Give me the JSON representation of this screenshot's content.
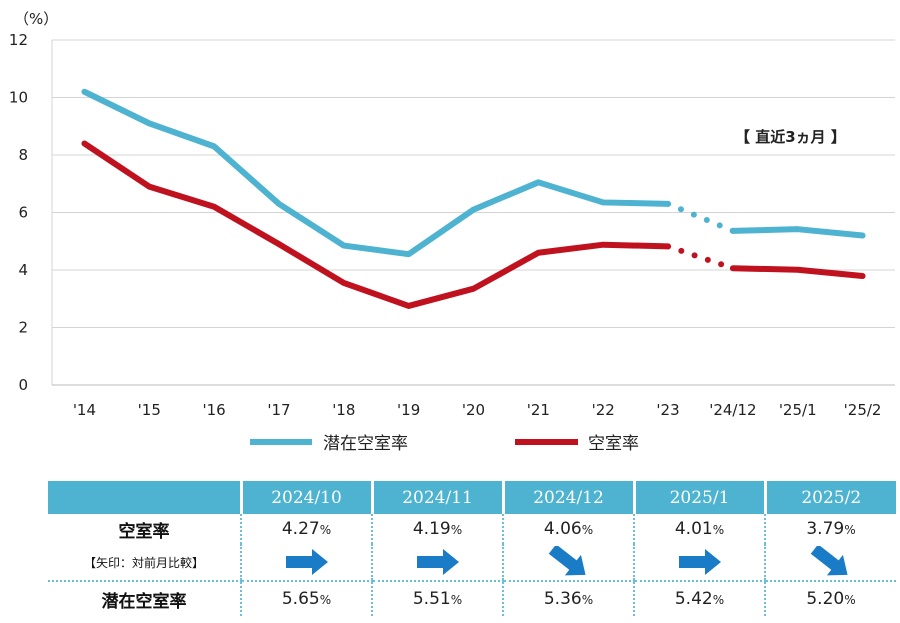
{
  "chart_data": {
    "type": "line",
    "unit_label": "（%）",
    "categories": [
      "'14",
      "'15",
      "'16",
      "'17",
      "'18",
      "'19",
      "'20",
      "'21",
      "'22",
      "'23",
      "'24/12",
      "'25/1",
      "'25/2"
    ],
    "y_ticks": [
      0,
      2,
      4,
      6,
      8,
      10,
      12
    ],
    "ylim": [
      0,
      12
    ],
    "grid": true,
    "annotation": "【 直近3ヵ月 】",
    "series": [
      {
        "name": "潜在空室率",
        "color": "#4db3d1",
        "values": [
          10.2,
          9.1,
          8.3,
          6.3,
          4.85,
          4.55,
          6.1,
          7.05,
          6.35,
          6.3,
          5.36,
          5.42,
          5.2
        ]
      },
      {
        "name": "空室率",
        "color": "#c0111f",
        "values": [
          8.4,
          6.9,
          6.2,
          4.9,
          3.55,
          2.75,
          3.35,
          4.6,
          4.88,
          4.82,
          4.06,
          4.01,
          3.79
        ]
      }
    ]
  },
  "table": {
    "months": [
      "2024/10",
      "2024/11",
      "2024/12",
      "2025/1",
      "2025/2"
    ],
    "vacancy_label": "空室率",
    "vacancy_values": [
      "4.27",
      "4.19",
      "4.06",
      "4.01",
      "3.79"
    ],
    "arrow_note": "【矢印：対前月比較】",
    "arrows": [
      "right",
      "right",
      "down-right",
      "right",
      "down-right"
    ],
    "arrow_color": "#1a7cc6",
    "latent_label": "潜在空室率",
    "latent_values": [
      "5.65",
      "5.51",
      "5.36",
      "5.42",
      "5.20"
    ],
    "unit": "%"
  }
}
